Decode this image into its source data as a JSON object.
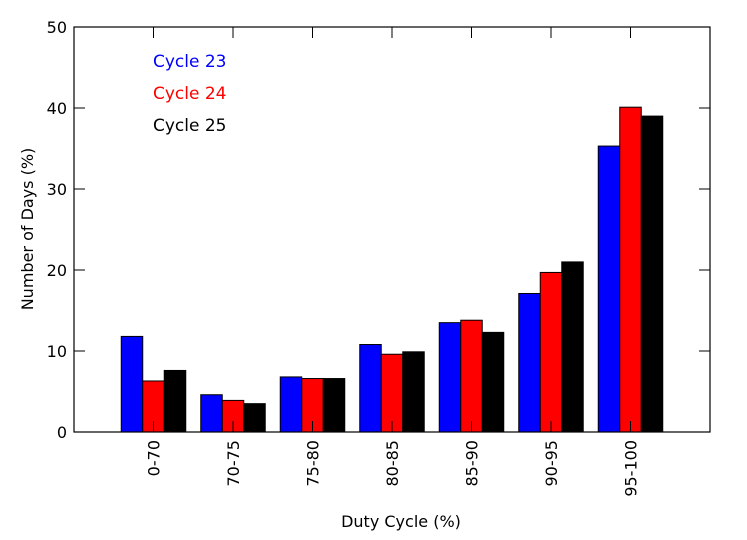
{
  "chart_data": {
    "type": "bar",
    "title": "",
    "xlabel": "Duty Cycle (%)",
    "ylabel": "Number of Days (%)",
    "ylim": [
      0,
      50
    ],
    "yticks": [
      "0",
      "10",
      "20",
      "30",
      "40",
      "50"
    ],
    "grid": false,
    "legend_position": "top-left",
    "categories": [
      "0-70",
      "70-75",
      "75-80",
      "80-85",
      "85-90",
      "90-95",
      "95-100"
    ],
    "series": [
      {
        "name": "Cycle 23",
        "color": "#0000ff",
        "values": [
          11.8,
          4.6,
          6.8,
          10.8,
          13.5,
          17.1,
          35.3
        ]
      },
      {
        "name": "Cycle 24",
        "color": "#ff0000",
        "values": [
          6.3,
          3.9,
          6.6,
          9.6,
          13.8,
          19.7,
          40.1
        ]
      },
      {
        "name": "Cycle 25",
        "color": "#000000",
        "values": [
          7.6,
          3.5,
          6.6,
          9.9,
          12.3,
          21.0,
          39.0
        ]
      }
    ]
  }
}
